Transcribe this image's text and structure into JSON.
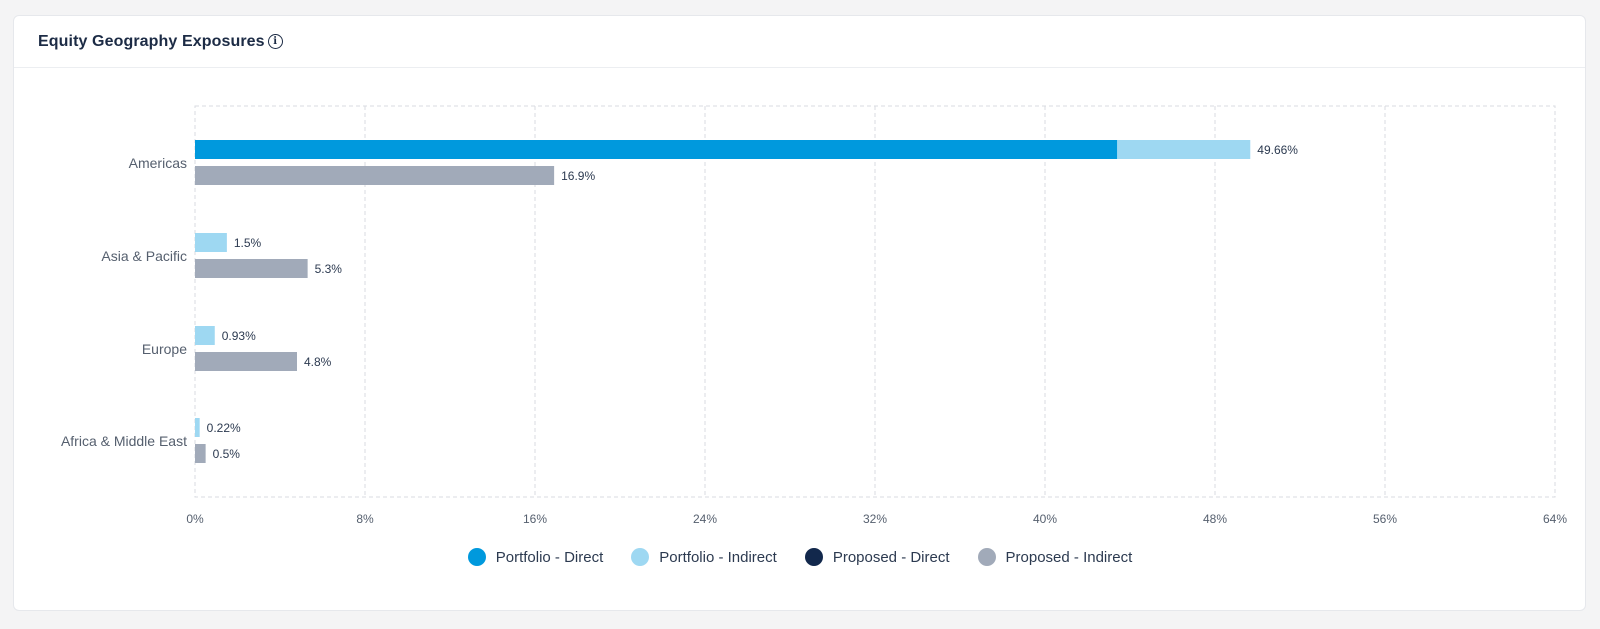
{
  "card": {
    "title": "Equity Geography Exposures",
    "info_icon": "info-icon"
  },
  "chart_data": {
    "type": "bar",
    "orientation": "horizontal",
    "stacked_pairs": true,
    "categories": [
      "Americas",
      "Asia & Pacific",
      "Europe",
      "Africa & Middle East"
    ],
    "series": [
      {
        "name": "Portfolio - Direct",
        "color": "#0099dd",
        "values": [
          43.4,
          0,
          0,
          0
        ]
      },
      {
        "name": "Portfolio - Indirect",
        "color": "#9ed8f2",
        "values": [
          6.26,
          1.5,
          0.93,
          0.22
        ]
      },
      {
        "name": "Proposed - Direct",
        "color": "#12284c",
        "values": [
          0,
          0,
          0,
          0
        ]
      },
      {
        "name": "Proposed - Indirect",
        "color": "#a1aab9",
        "values": [
          16.9,
          5.3,
          4.8,
          0.5
        ]
      }
    ],
    "bar_labels": {
      "portfolio": [
        "49.66%",
        "1.5%",
        "0.93%",
        "0.22%"
      ],
      "proposed": [
        "16.9%",
        "5.3%",
        "4.8%",
        "0.5%"
      ]
    },
    "xlim": [
      0,
      64
    ],
    "xticks": [
      "0%",
      "8%",
      "16%",
      "24%",
      "32%",
      "40%",
      "48%",
      "56%",
      "64%"
    ],
    "grid": true,
    "legend_position": "bottom-center"
  }
}
